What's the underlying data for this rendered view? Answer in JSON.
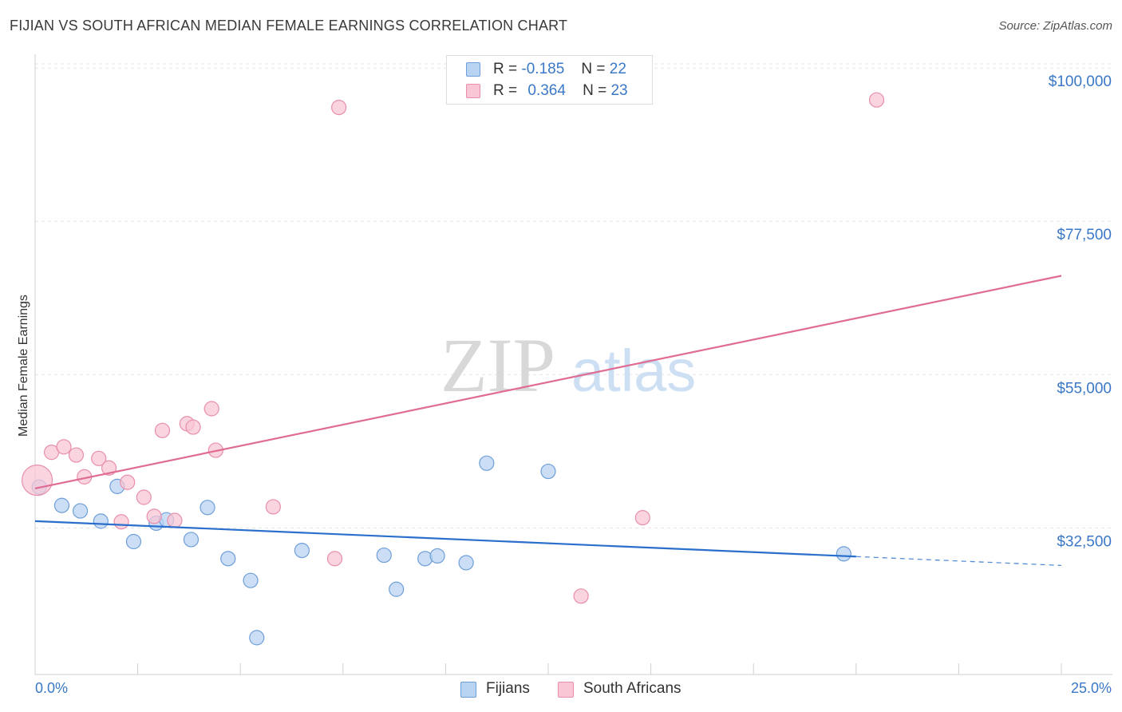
{
  "header": {
    "title": "FIJIAN VS SOUTH AFRICAN MEDIAN FEMALE EARNINGS CORRELATION CHART",
    "source": "Source: ZipAtlas.com"
  },
  "legend": {
    "fijians": {
      "r_label": "R =",
      "r_value": "-0.185",
      "n_label": "N =",
      "n_value": "22"
    },
    "south_africans": {
      "r_label": "R =",
      "r_value": "0.364",
      "n_label": "N =",
      "n_value": "23"
    }
  },
  "colors": {
    "fijians_fill": "#b9d3f3",
    "fijians_stroke": "#6e9fd8",
    "fijians_line": "#2a6fcc",
    "south_africans_fill": "#f8c6d4",
    "south_africans_stroke": "#e88fab",
    "south_africans_line": "#e06c92",
    "axis_label": "#3a78c7",
    "grid": "#e3e3e3"
  },
  "chart_data": {
    "type": "scatter",
    "title": "FIJIAN VS SOUTH AFRICAN MEDIAN FEMALE EARNINGS CORRELATION CHART",
    "xlabel": "",
    "ylabel": "Median Female Earnings",
    "xlim": [
      0,
      25
    ],
    "ylim": [
      11000,
      102000
    ],
    "x_tick_labels": [
      "0.0%",
      "25.0%"
    ],
    "y_ticks": [
      {
        "value": 32500,
        "label": "$32,500"
      },
      {
        "value": 55000,
        "label": "$55,000"
      },
      {
        "value": 77500,
        "label": "$77,500"
      },
      {
        "value": 100000,
        "label": "$100,000"
      }
    ],
    "watermark": {
      "zip": "ZIP",
      "atlas": "atlas"
    },
    "series": [
      {
        "name": "Fijians",
        "points": [
          {
            "x": 0.1,
            "y": 38500
          },
          {
            "x": 0.65,
            "y": 35800
          },
          {
            "x": 1.1,
            "y": 35000
          },
          {
            "x": 1.6,
            "y": 33500
          },
          {
            "x": 2.0,
            "y": 38600
          },
          {
            "x": 2.4,
            "y": 30500
          },
          {
            "x": 2.95,
            "y": 33200
          },
          {
            "x": 3.2,
            "y": 33700
          },
          {
            "x": 3.8,
            "y": 30800
          },
          {
            "x": 4.2,
            "y": 35500
          },
          {
            "x": 4.7,
            "y": 28000
          },
          {
            "x": 5.25,
            "y": 24800
          },
          {
            "x": 5.4,
            "y": 16400
          },
          {
            "x": 6.5,
            "y": 29200
          },
          {
            "x": 8.5,
            "y": 28500
          },
          {
            "x": 8.8,
            "y": 23500
          },
          {
            "x": 9.5,
            "y": 28000
          },
          {
            "x": 9.8,
            "y": 28400
          },
          {
            "x": 10.5,
            "y": 27400
          },
          {
            "x": 11.0,
            "y": 42000
          },
          {
            "x": 12.5,
            "y": 40800
          },
          {
            "x": 19.7,
            "y": 28700
          }
        ],
        "trend": {
          "x0": 0,
          "y0": 33500,
          "x1": 25,
          "y1": 27000,
          "solid_until_x": 20
        }
      },
      {
        "name": "South Africans",
        "points": [
          {
            "x": 0.05,
            "y": 39500,
            "size": "large"
          },
          {
            "x": 0.4,
            "y": 43600
          },
          {
            "x": 0.7,
            "y": 44400
          },
          {
            "x": 1.0,
            "y": 43200
          },
          {
            "x": 1.2,
            "y": 40000
          },
          {
            "x": 1.55,
            "y": 42700
          },
          {
            "x": 1.8,
            "y": 41300
          },
          {
            "x": 2.1,
            "y": 33400
          },
          {
            "x": 2.25,
            "y": 39200
          },
          {
            "x": 2.65,
            "y": 37000
          },
          {
            "x": 2.9,
            "y": 34200
          },
          {
            "x": 3.1,
            "y": 46800
          },
          {
            "x": 3.4,
            "y": 33600
          },
          {
            "x": 3.7,
            "y": 47800
          },
          {
            "x": 3.85,
            "y": 47300
          },
          {
            "x": 4.3,
            "y": 50000
          },
          {
            "x": 4.4,
            "y": 43900
          },
          {
            "x": 5.8,
            "y": 35600
          },
          {
            "x": 7.3,
            "y": 28000
          },
          {
            "x": 7.4,
            "y": 94200
          },
          {
            "x": 13.3,
            "y": 22500
          },
          {
            "x": 14.8,
            "y": 34000
          },
          {
            "x": 20.5,
            "y": 95300
          }
        ],
        "trend": {
          "x0": 0,
          "y0": 38300,
          "x1": 25,
          "y1": 69500
        }
      }
    ]
  }
}
